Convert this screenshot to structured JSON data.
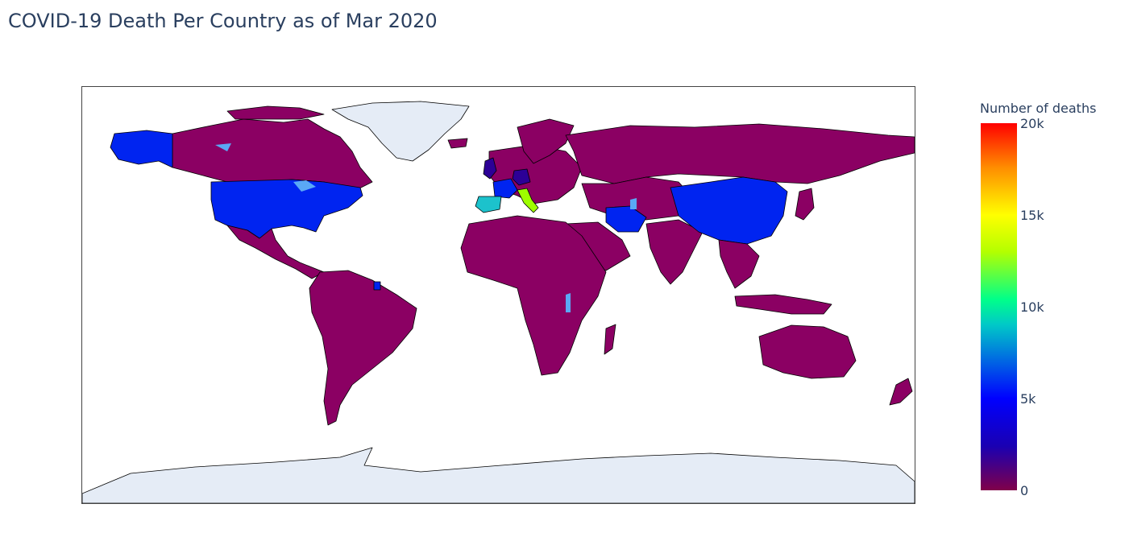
{
  "title": "COVID-19 Death Per Country as of Mar 2020",
  "colors": {
    "none": "#8b0063",
    "low": "#2c0096",
    "mid": "#0024f0",
    "spain": "#1cc2cc",
    "italy": "#9eff00",
    "no_data": "#e5ecf6",
    "water": "#5aa8f5",
    "border": "#000000"
  },
  "legend": {
    "title": "Number of deaths",
    "ticks": [
      "20k",
      "15k",
      "10k",
      "5k",
      "0"
    ]
  },
  "map_data": {
    "type": "choropleth",
    "highlighted": [
      "USA",
      "Spain",
      "Italy",
      "France",
      "United Kingdom",
      "Germany",
      "Iran",
      "China",
      "Netherlands"
    ]
  }
}
